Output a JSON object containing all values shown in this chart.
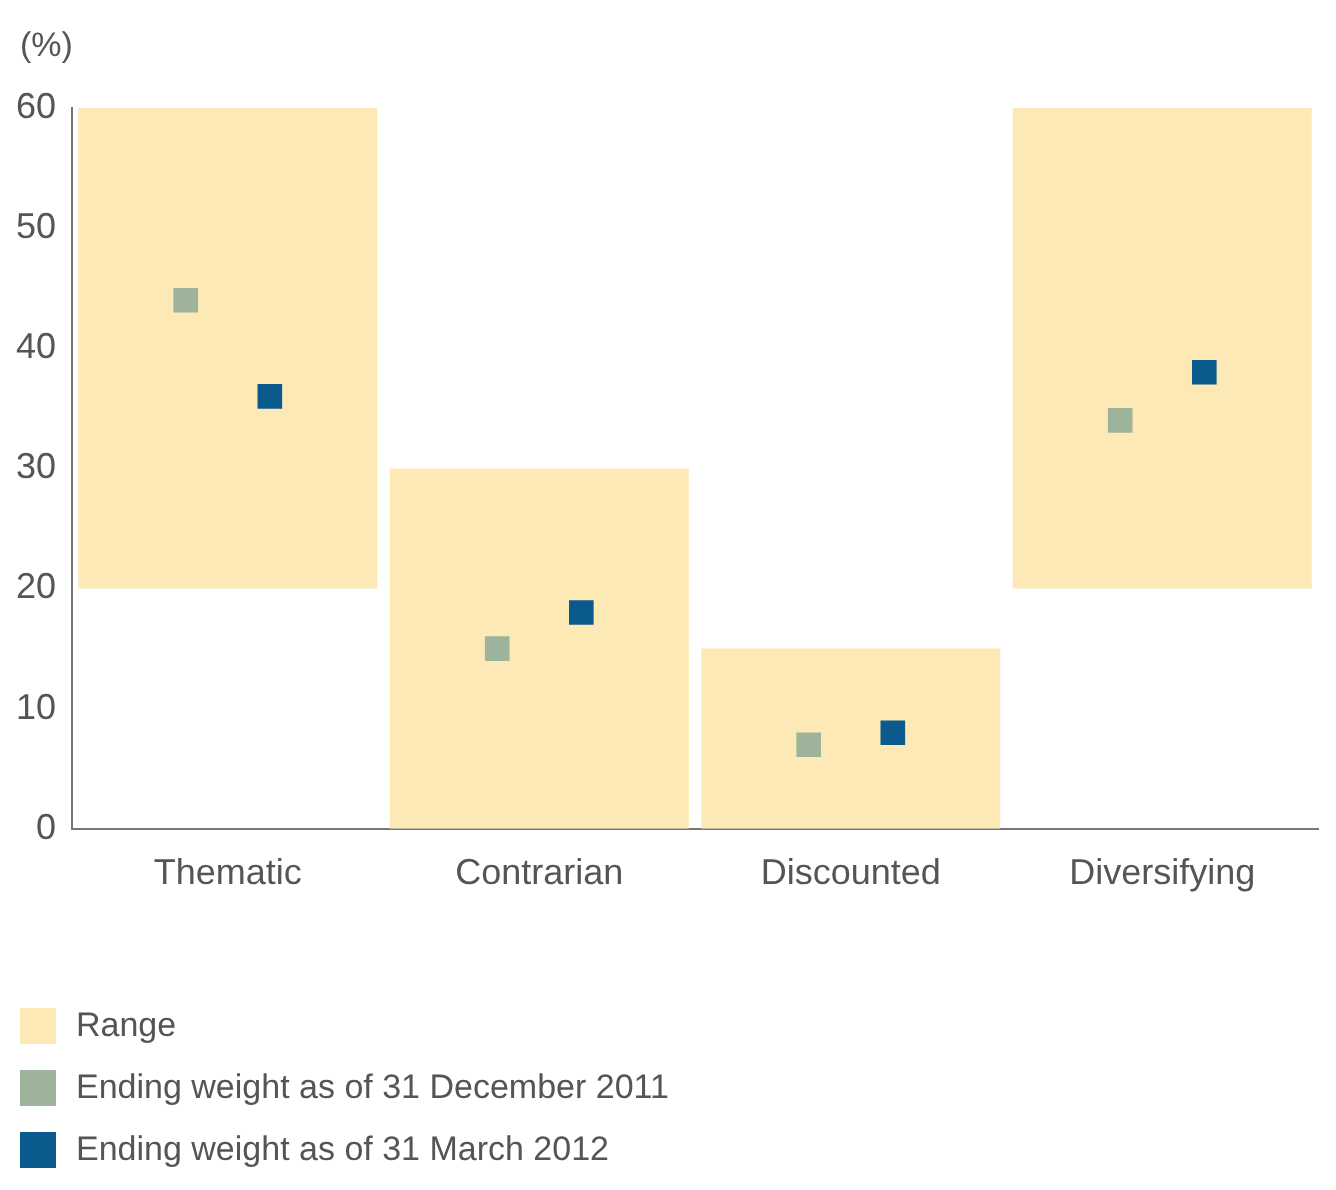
{
  "chart_data": {
    "type": "bar",
    "ylabel": "(%)",
    "categories": [
      "Thematic",
      "Contrarian",
      "Discounted",
      "Diversifying"
    ],
    "ylim": [
      0,
      60
    ],
    "yticks": [
      0,
      10,
      20,
      30,
      40,
      50,
      60
    ],
    "grid": false,
    "legend": "bottom left",
    "marker": "square",
    "series": [
      {
        "name": "Range",
        "color": "#fde9b5",
        "base": [
          20,
          0,
          0,
          20
        ],
        "values": [
          40,
          30,
          15,
          40
        ]
      },
      {
        "name": "Ending weight as of 31 December 2011",
        "type": "scatter",
        "color": "#9db39b",
        "x": [
          "Thematic",
          "Contrarian",
          "Discounted",
          "Diversifying"
        ],
        "values": [
          44,
          15,
          7,
          34
        ]
      },
      {
        "name": "Ending weight as of 31 March 2012",
        "type": "scatter",
        "color": "#0b5a8e",
        "x": [
          "Thematic",
          "Contrarian",
          "Discounted",
          "Diversifying"
        ],
        "values": [
          36,
          18,
          8,
          38
        ]
      }
    ]
  }
}
